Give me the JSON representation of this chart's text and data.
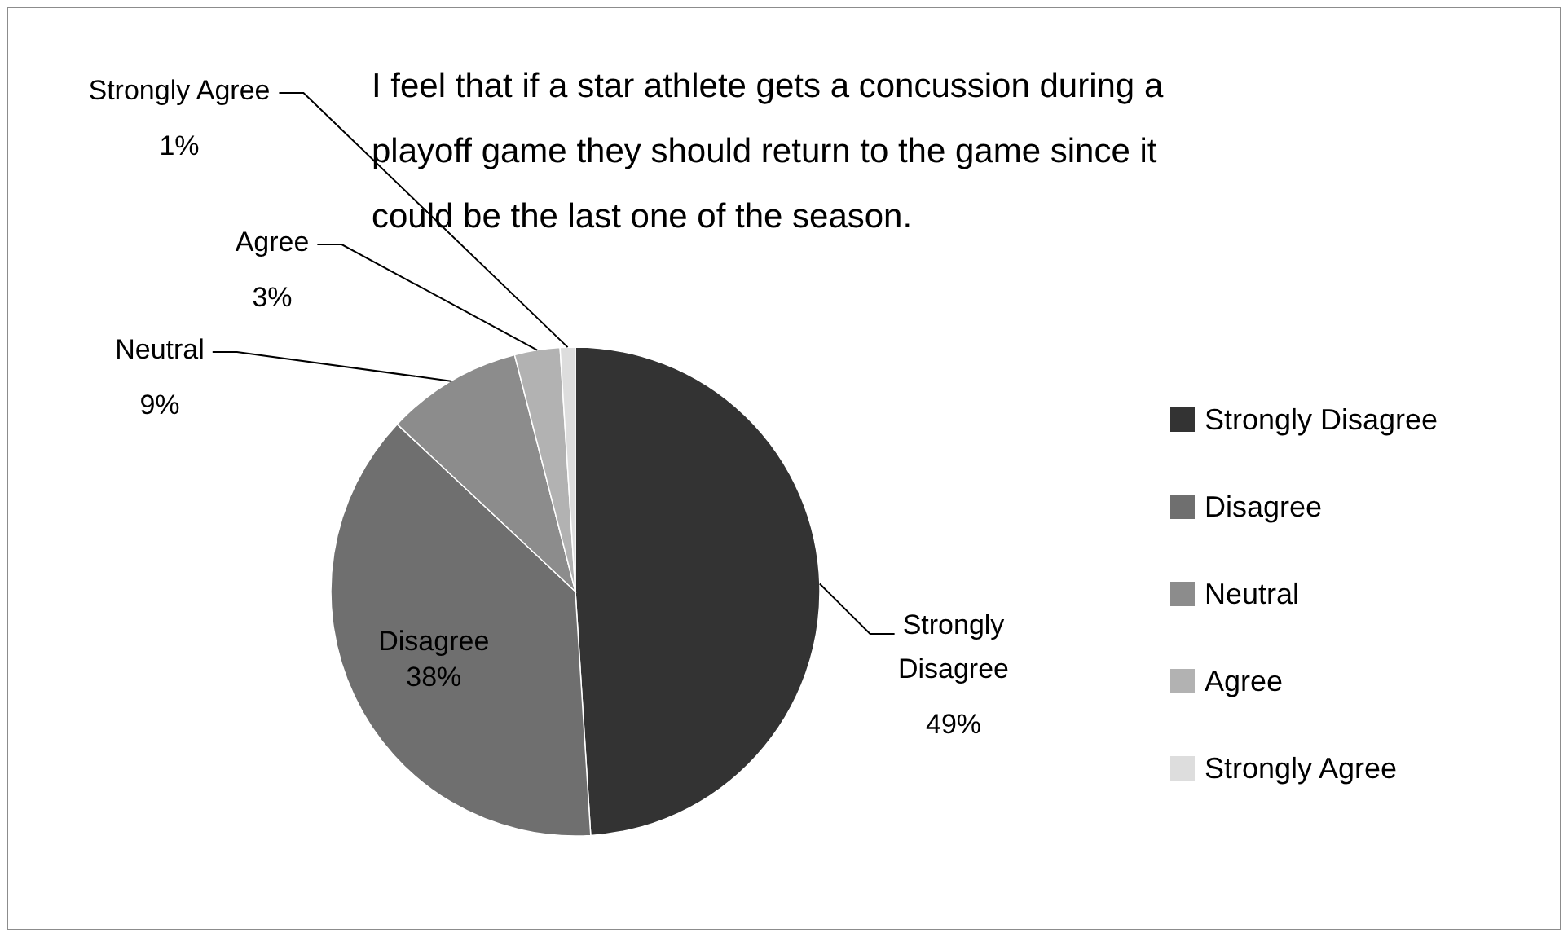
{
  "chart_data": {
    "type": "pie",
    "title": "I feel that if a star athlete gets a concussion during a playoff game they should return to the game since it could be the last one of the season.",
    "categories": [
      "Strongly Disagree",
      "Disagree",
      "Neutral",
      "Agree",
      "Strongly Agree"
    ],
    "values": [
      49,
      38,
      9,
      3,
      1
    ],
    "value_labels": [
      "49%",
      "38%",
      "9%",
      "3%",
      "1%"
    ],
    "colors": [
      "#333333",
      "#6f6f6f",
      "#8c8c8c",
      "#b2b2b2",
      "#dddddd"
    ],
    "legend": "right"
  }
}
